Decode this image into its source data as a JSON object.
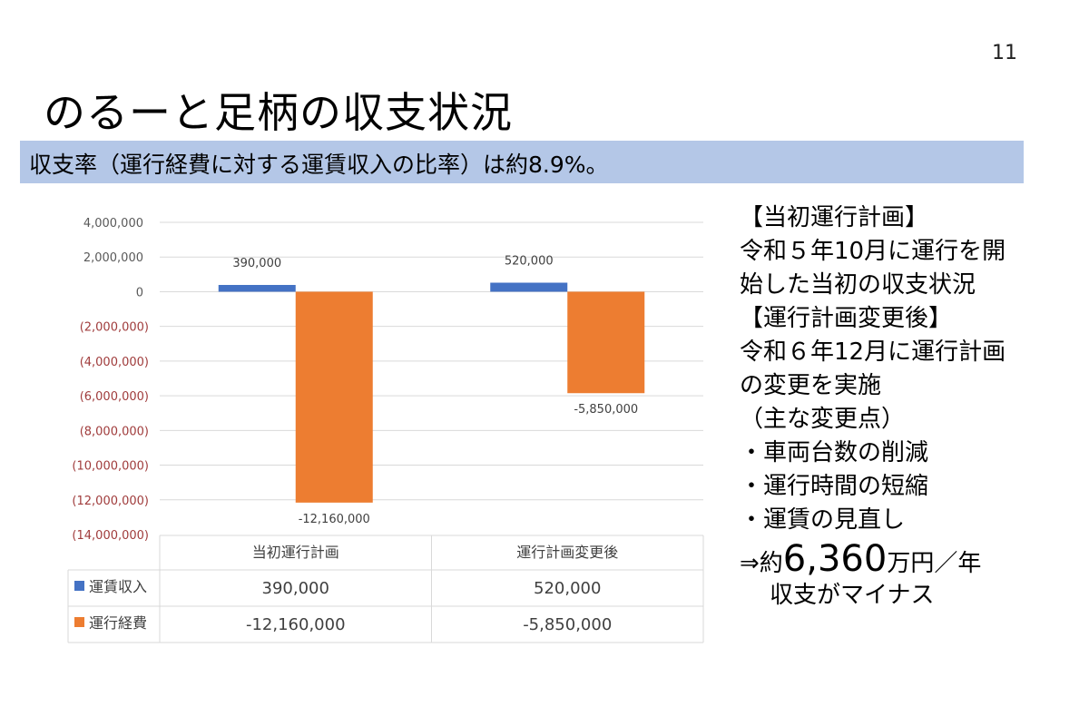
{
  "page_number": "11",
  "title": "のるーと足柄の収支状況",
  "banner": "収支率（運行経費に対する運賃収入の比率）は約8.9%。",
  "side_text": {
    "lines": [
      "【当初運行計画】",
      "令和５年10月に運行を開",
      "始した当初の収支状況",
      "【運行計画変更後】",
      "令和６年12月に運行計画",
      "の変更を実施",
      "（主な変更点）",
      "・車両台数の削減",
      "・運行時間の短縮",
      "・運賃の見直し"
    ],
    "conclusion_prefix": "⇒約",
    "conclusion_number": "6,360",
    "conclusion_suffix": "万円／年",
    "conclusion_line2": "収支がマイナス"
  },
  "chart_data": {
    "type": "bar",
    "categories": [
      "当初運行計画",
      "運行計画変更後"
    ],
    "series": [
      {
        "name": "運賃収入",
        "values": [
          390000,
          520000
        ],
        "labels": [
          "390,000",
          "520,000"
        ],
        "table_values": [
          "390,000",
          "520,000"
        ],
        "color": "#4472c4"
      },
      {
        "name": "運行経費",
        "values": [
          -12160000,
          -5850000
        ],
        "labels": [
          "-12,160,000",
          "-5,850,000"
        ],
        "table_values": [
          "-12,160,000",
          "-5,850,000"
        ],
        "color": "#ed7d31"
      }
    ],
    "ylim": [
      -14000000,
      4000000
    ],
    "yticks": [
      4000000,
      2000000,
      0,
      -2000000,
      -4000000,
      -6000000,
      -8000000,
      -10000000,
      -12000000,
      -14000000
    ],
    "ytick_labels": [
      "4,000,000",
      "2,000,000",
      "0",
      "(2,000,000)",
      "(4,000,000)",
      "(6,000,000)",
      "(8,000,000)",
      "(10,000,000)",
      "(12,000,000)",
      "(14,000,000)"
    ],
    "negative_tick_color": "#a03c3c",
    "grid": true,
    "legend": "data-table"
  }
}
